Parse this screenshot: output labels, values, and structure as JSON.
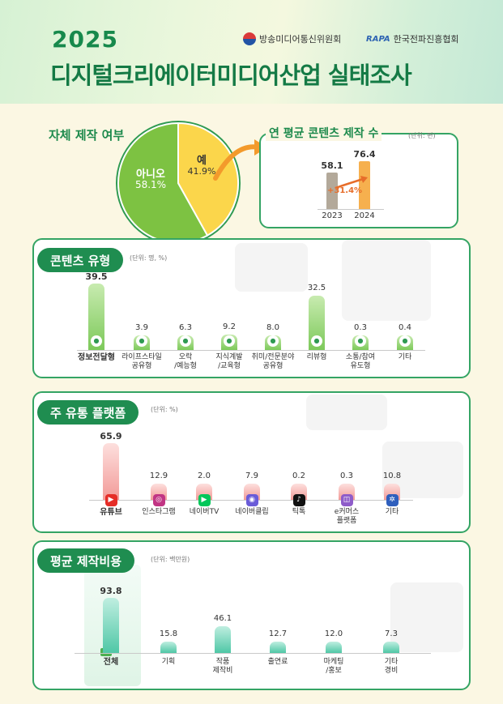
{
  "header": {
    "year": "2025",
    "title": "디지털크리에이터미디어산업 실태조사",
    "org1": "방송미디어통신위원회",
    "org2_logo": "RAPA",
    "org2": "한국전파진흥협회"
  },
  "self_production": {
    "title": "자체 제작 여부",
    "no_label": "아니오",
    "no_value": "58.1%",
    "yes_label": "예",
    "yes_value": "41.9%"
  },
  "annual": {
    "title": "연 평균 콘텐츠 제작 수",
    "unit": "(단위: 편)",
    "growth": "+31.4%"
  },
  "content_type": {
    "title": "콘텐츠 유형",
    "unit": "(단위: 명, %)"
  },
  "platform": {
    "title": "주 유통 플랫폼",
    "unit": "(단위: %)"
  },
  "cost": {
    "title": "평균 제작비용",
    "unit": "(단위: 백만원)"
  },
  "chart_data": [
    {
      "type": "pie",
      "title": "자체 제작 여부",
      "categories": [
        "아니오",
        "예"
      ],
      "values": [
        58.1,
        41.9
      ],
      "colors": [
        "#7dc242",
        "#fbd64b"
      ]
    },
    {
      "type": "bar",
      "title": "연 평균 콘텐츠 제작 수",
      "categories": [
        "2023",
        "2024"
      ],
      "values": [
        58.1,
        76.4
      ],
      "labels": [
        "58.1",
        "76.4"
      ],
      "colors": [
        "#b3a99a",
        "#f6b04e"
      ]
    },
    {
      "type": "bar",
      "title": "콘텐츠 유형",
      "categories": [
        "정보전달형",
        "라이프스타일\n공유형",
        "오락\n/예능형",
        "지식계발\n/교육형",
        "취미/전문분야\n공유형",
        "리뷰형",
        "소통/참여\n유도형",
        "기타"
      ],
      "values": [
        39.5,
        3.9,
        6.3,
        9.2,
        8.0,
        32.5,
        0.3,
        0.4
      ],
      "labels": [
        "39.5",
        "3.9",
        "6.3",
        "9.2",
        "8.0",
        "32.5",
        "0.3",
        "0.4"
      ],
      "icons": [
        "clock-icon",
        "home-icon",
        "gamepad-icon",
        "lightbulb-icon",
        "palette-icon",
        "tv-icon",
        "chat-icon",
        "etc-icon"
      ],
      "bold": [
        0
      ],
      "color": "#7dc95a"
    },
    {
      "type": "bar",
      "title": "주 유통 플랫폼",
      "categories": [
        "유튜브",
        "인스타그램",
        "네이버TV",
        "네이버클립",
        "틱톡",
        "e커머스\n플랫폼",
        "기타"
      ],
      "values": [
        65.9,
        12.9,
        2.0,
        7.9,
        0.2,
        0.3,
        10.8
      ],
      "labels": [
        "65.9",
        "12.9",
        "2.0",
        "7.9",
        "0.2",
        "0.3",
        "10.8"
      ],
      "icons": [
        "youtube-icon",
        "instagram-icon",
        "naver-tv-icon",
        "naver-clip-icon",
        "tiktok-icon",
        "ecommerce-icon",
        "etc-icon"
      ],
      "bold": [
        0
      ],
      "color": "#f29a97"
    },
    {
      "type": "bar",
      "title": "평균 제작비용",
      "categories": [
        "전체",
        "기획",
        "작품\n제작비",
        "출연료",
        "마케팅\n/홍보",
        "기타\n경비"
      ],
      "values": [
        93.8,
        15.8,
        46.1,
        12.7,
        12.0,
        7.3
      ],
      "labels": [
        "93.8",
        "15.8",
        "46.1",
        "12.7",
        "12.0",
        "7.3"
      ],
      "bold": [
        0
      ],
      "color": "#4fc7a6"
    }
  ]
}
